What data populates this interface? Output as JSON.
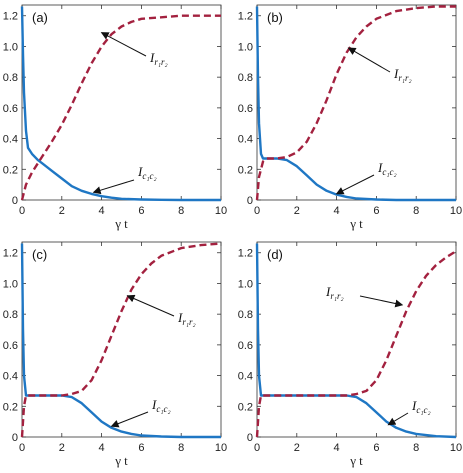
{
  "colors": {
    "concurrence": "#1f77c4",
    "entanglement": "#a3213f",
    "axis": "#333333"
  },
  "chart_data": [
    {
      "type": "line",
      "panel_label": "(a)",
      "xlabel": "γ t",
      "xlim": [
        0,
        10
      ],
      "ylim": [
        0,
        1.27
      ],
      "xticks": [
        "0",
        "2",
        "4",
        "6",
        "8",
        "10"
      ],
      "yticks": [
        "0",
        "0.2",
        "0.4",
        "0.6",
        "0.8",
        "1.0",
        "1.2"
      ],
      "series": [
        {
          "name": "I_{c1c2}",
          "style": "solid",
          "x": [
            0,
            0.05,
            0.1,
            0.2,
            0.3,
            0.5,
            0.8,
            1.0,
            1.5,
            2,
            2.5,
            3,
            3.5,
            4,
            4.5,
            5,
            6,
            7,
            8,
            9,
            10
          ],
          "y": [
            1.26,
            0.95,
            0.7,
            0.45,
            0.34,
            0.3,
            0.26,
            0.24,
            0.19,
            0.14,
            0.09,
            0.06,
            0.04,
            0.025,
            0.015,
            0.008,
            0.003,
            0.001,
            0,
            0,
            0
          ]
        },
        {
          "name": "I_{r1r2}",
          "style": "dashed",
          "x": [
            0,
            0.2,
            0.5,
            1,
            1.5,
            2,
            2.5,
            3,
            3.5,
            4,
            4.5,
            5,
            5.5,
            6,
            7,
            8,
            9,
            10
          ],
          "y": [
            0,
            0.1,
            0.18,
            0.28,
            0.38,
            0.49,
            0.62,
            0.76,
            0.89,
            1.0,
            1.08,
            1.13,
            1.16,
            1.18,
            1.19,
            1.2,
            1.2,
            1.2
          ]
        }
      ],
      "annotations": [
        {
          "series": "I_{r1r2}",
          "text_main": "I",
          "sub": "r₁r₂",
          "target": [
            4.0,
            1.09
          ]
        },
        {
          "series": "I_{c1c2}",
          "text_main": "I",
          "sub": "c₁c₂",
          "target": [
            3.6,
            0.05
          ]
        }
      ]
    },
    {
      "type": "line",
      "panel_label": "(b)",
      "xlabel": "γ t",
      "xlim": [
        0,
        10
      ],
      "ylim": [
        0,
        1.27
      ],
      "xticks": [
        "0",
        "2",
        "4",
        "6",
        "8",
        "10"
      ],
      "yticks": [
        "0",
        "0.2",
        "0.4",
        "0.6",
        "0.8",
        "1.0",
        "1.2"
      ],
      "series": [
        {
          "name": "I_{c1c2}",
          "style": "solid",
          "x": [
            0,
            0.05,
            0.1,
            0.2,
            0.3,
            0.5,
            1.0,
            1.5,
            2,
            2.5,
            3,
            3.5,
            4,
            4.5,
            5,
            6,
            7,
            8,
            9,
            10
          ],
          "y": [
            1.26,
            0.8,
            0.5,
            0.3,
            0.27,
            0.27,
            0.27,
            0.26,
            0.22,
            0.16,
            0.1,
            0.06,
            0.035,
            0.02,
            0.01,
            0.003,
            0,
            0,
            0,
            0
          ]
        },
        {
          "name": "I_{r1r2}",
          "style": "dashed",
          "x": [
            0,
            0.1,
            0.3,
            0.5,
            1,
            1.5,
            2,
            2.5,
            3,
            3.5,
            4,
            4.5,
            5,
            5.5,
            6,
            7,
            8,
            9,
            10
          ],
          "y": [
            0,
            0.15,
            0.25,
            0.27,
            0.27,
            0.28,
            0.31,
            0.38,
            0.5,
            0.65,
            0.82,
            0.96,
            1.06,
            1.13,
            1.18,
            1.23,
            1.25,
            1.26,
            1.26
          ]
        }
      ],
      "annotations": [
        {
          "series": "I_{r1r2}",
          "text_main": "I",
          "sub": "r₁r₂",
          "target": [
            4.6,
            0.99
          ]
        },
        {
          "series": "I_{c1c2}",
          "text_main": "I",
          "sub": "c₁c₂",
          "target": [
            4.0,
            0.04
          ]
        }
      ]
    },
    {
      "type": "line",
      "panel_label": "(c)",
      "xlabel": "γ t",
      "xlim": [
        0,
        10
      ],
      "ylim": [
        0,
        1.27
      ],
      "xticks": [
        "0",
        "2",
        "4",
        "6",
        "8",
        "10"
      ],
      "yticks": [
        "0",
        "0.2",
        "0.4",
        "0.6",
        "0.8",
        "1.0",
        "1.2"
      ],
      "series": [
        {
          "name": "I_{c1c2}",
          "style": "solid",
          "x": [
            0,
            0.05,
            0.1,
            0.2,
            0.5,
            1,
            1.5,
            2,
            2.5,
            3,
            3.5,
            4,
            4.5,
            5,
            5.5,
            6,
            7,
            8,
            9,
            10
          ],
          "y": [
            1.26,
            0.7,
            0.4,
            0.27,
            0.27,
            0.27,
            0.27,
            0.27,
            0.26,
            0.22,
            0.16,
            0.1,
            0.06,
            0.035,
            0.02,
            0.01,
            0.003,
            0,
            0,
            0
          ]
        },
        {
          "name": "I_{r1r2}",
          "style": "dashed",
          "x": [
            0,
            0.1,
            0.2,
            0.5,
            1,
            1.5,
            2,
            2.5,
            3,
            3.5,
            4,
            4.5,
            5,
            5.5,
            6,
            6.5,
            7,
            8,
            9,
            10
          ],
          "y": [
            0,
            0.2,
            0.27,
            0.27,
            0.27,
            0.27,
            0.27,
            0.28,
            0.3,
            0.37,
            0.5,
            0.66,
            0.82,
            0.96,
            1.06,
            1.13,
            1.18,
            1.23,
            1.25,
            1.26
          ]
        }
      ],
      "annotations": [
        {
          "series": "I_{r1r2}",
          "text_main": "I",
          "sub": "r₁r₂",
          "target": [
            5.3,
            0.92
          ]
        },
        {
          "series": "I_{c1c2}",
          "text_main": "I",
          "sub": "c₁c₂",
          "target": [
            4.5,
            0.07
          ]
        }
      ]
    },
    {
      "type": "line",
      "panel_label": "(d)",
      "xlabel": "γ t",
      "xlim": [
        0,
        10
      ],
      "ylim": [
        0,
        1.27
      ],
      "xticks": [
        "0",
        "2",
        "4",
        "6",
        "8",
        "10"
      ],
      "yticks": [
        "0",
        "0.2",
        "0.4",
        "0.6",
        "0.8",
        "1.0",
        "1.2"
      ],
      "series": [
        {
          "name": "I_{c1c2}",
          "style": "solid",
          "x": [
            0,
            0.05,
            0.1,
            0.2,
            0.5,
            1,
            2,
            3,
            4,
            4.5,
            5,
            5.5,
            6,
            6.5,
            7,
            7.5,
            8,
            9,
            10
          ],
          "y": [
            1.26,
            0.7,
            0.4,
            0.27,
            0.27,
            0.27,
            0.27,
            0.27,
            0.27,
            0.27,
            0.26,
            0.22,
            0.16,
            0.1,
            0.06,
            0.035,
            0.02,
            0.005,
            0
          ]
        },
        {
          "name": "I_{r1r2}",
          "style": "dashed",
          "x": [
            0,
            0.1,
            0.2,
            0.5,
            1,
            2,
            3,
            4,
            4.5,
            5,
            5.5,
            6,
            6.5,
            7,
            7.5,
            8,
            8.5,
            9,
            9.5,
            10
          ],
          "y": [
            0,
            0.2,
            0.27,
            0.27,
            0.27,
            0.27,
            0.27,
            0.27,
            0.27,
            0.28,
            0.3,
            0.37,
            0.5,
            0.66,
            0.82,
            0.95,
            1.05,
            1.12,
            1.17,
            1.21
          ]
        }
      ],
      "annotations": [
        {
          "series": "I_{r1r2}",
          "text_main": "I",
          "sub": "r₁r₂",
          "target": [
            7.3,
            0.86
          ]
        },
        {
          "series": "I_{c1c2}",
          "text_main": "I",
          "sub": "c₁c₂",
          "target": [
            6.6,
            0.08
          ]
        }
      ]
    }
  ]
}
